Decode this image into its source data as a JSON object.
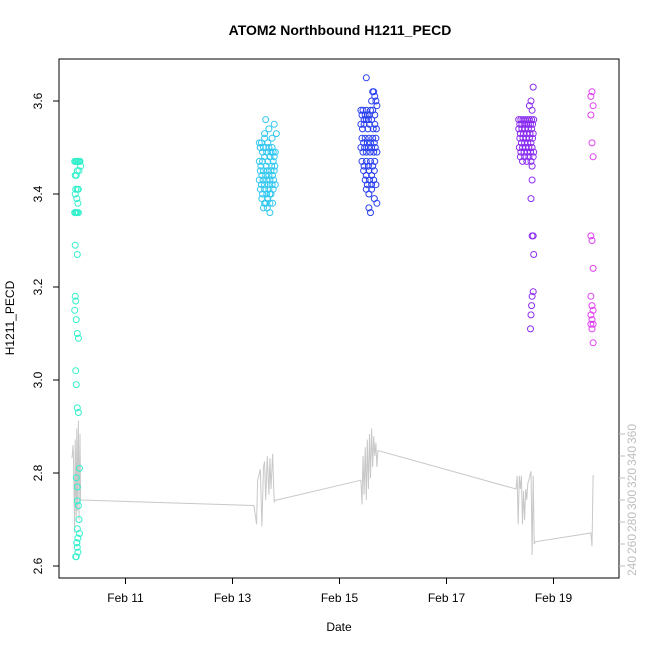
{
  "chart_data": {
    "type": "scatter",
    "title": "ATOM2 Northbound H1211_PECD",
    "xlabel": "Date",
    "ylabel": "H1211_PECD",
    "y2label": "",
    "x_ticks": [
      {
        "day": 11,
        "label": "Feb 11"
      },
      {
        "day": 13,
        "label": "Feb 13"
      },
      {
        "day": 15,
        "label": "Feb 15"
      },
      {
        "day": 17,
        "label": "Feb 17"
      },
      {
        "day": 19,
        "label": "Feb 19"
      }
    ],
    "y_ticks": [
      "2.6",
      "2.8",
      "3.0",
      "3.2",
      "3.4",
      "3.6"
    ],
    "y2_ticks": [
      "240",
      "260",
      "280",
      "300",
      "320",
      "340",
      "360"
    ],
    "ylim": [
      2.6,
      3.68
    ],
    "y2lim": [
      236,
      376
    ],
    "xlim_days": [
      9.9,
      19.95
    ],
    "colors": {
      "right_axis": "#bebebe",
      "line": "#c8c8c8",
      "groups": [
        "#33f0cc",
        "#33c8f0",
        "#2a40f0",
        "#8a2ef0",
        "#e040f0"
      ]
    },
    "series": [
      {
        "color": "#33f0cc",
        "x": [
          10.05,
          10.07,
          10.08,
          10.1,
          10.12,
          10.14,
          10.15,
          10.06,
          10.08,
          10.1,
          10.13,
          10.16,
          10.07,
          10.1,
          10.12,
          10.06,
          10.09,
          10.11,
          10.07,
          10.05,
          10.08,
          10.1,
          10.12,
          10.06,
          10.1,
          10.06,
          10.07,
          10.05,
          10.08,
          10.1,
          10.12,
          10.07,
          10.08,
          10.1,
          10.12,
          10.14,
          10.08,
          10.1,
          10.1,
          10.12,
          10.13,
          10.14,
          10.09,
          10.1,
          10.11,
          10.08,
          10.07,
          10.09,
          10.1,
          10.11
        ],
        "y": [
          3.47,
          3.47,
          3.47,
          3.47,
          3.47,
          3.47,
          3.47,
          3.44,
          3.44,
          3.45,
          3.45,
          3.46,
          3.41,
          3.41,
          3.41,
          3.4,
          3.39,
          3.38,
          3.36,
          3.36,
          3.36,
          3.36,
          3.36,
          3.29,
          3.27,
          3.18,
          3.17,
          3.15,
          3.13,
          3.1,
          3.09,
          3.02,
          2.99,
          2.94,
          2.93,
          2.81,
          2.79,
          2.77,
          2.74,
          2.73,
          2.7,
          2.67,
          2.65,
          2.64,
          2.63,
          2.62,
          2.62,
          2.65,
          2.68,
          2.66
        ]
      },
      {
        "color": "#33c8f0",
        "x": [
          13.5,
          13.52,
          13.54,
          13.56,
          13.58,
          13.6,
          13.62,
          13.64,
          13.66,
          13.68,
          13.7,
          13.72,
          13.74,
          13.76,
          13.78,
          13.8,
          13.5,
          13.53,
          13.56,
          13.6,
          13.63,
          13.66,
          13.7,
          13.73,
          13.76,
          13.79,
          13.52,
          13.55,
          13.58,
          13.62,
          13.65,
          13.68,
          13.72,
          13.75,
          13.78,
          13.5,
          13.54,
          13.57,
          13.6,
          13.64,
          13.67,
          13.7,
          13.74,
          13.77,
          13.8,
          13.52,
          13.56,
          13.6,
          13.64,
          13.68,
          13.72,
          13.76,
          13.55,
          13.6,
          13.65,
          13.7,
          13.75,
          13.58,
          13.62,
          13.66,
          13.7,
          13.62,
          13.68,
          13.74,
          13.78,
          13.82,
          13.6,
          13.62,
          13.65,
          13.7
        ],
        "y": [
          3.51,
          3.5,
          3.51,
          3.49,
          3.5,
          3.52,
          3.5,
          3.49,
          3.51,
          3.5,
          3.48,
          3.49,
          3.5,
          3.49,
          3.48,
          3.49,
          3.47,
          3.46,
          3.47,
          3.48,
          3.46,
          3.47,
          3.48,
          3.46,
          3.47,
          3.46,
          3.45,
          3.44,
          3.45,
          3.44,
          3.45,
          3.44,
          3.45,
          3.44,
          3.45,
          3.43,
          3.42,
          3.43,
          3.42,
          3.43,
          3.42,
          3.43,
          3.42,
          3.43,
          3.42,
          3.41,
          3.4,
          3.41,
          3.4,
          3.41,
          3.4,
          3.41,
          3.39,
          3.38,
          3.39,
          3.38,
          3.38,
          3.37,
          3.38,
          3.39,
          3.4,
          3.56,
          3.54,
          3.52,
          3.55,
          3.53,
          3.53,
          3.38,
          3.37,
          3.36
        ]
      },
      {
        "color": "#2a40f0",
        "x": [
          15.4,
          15.42,
          15.44,
          15.46,
          15.48,
          15.5,
          15.52,
          15.54,
          15.56,
          15.58,
          15.6,
          15.62,
          15.64,
          15.66,
          15.68,
          15.7,
          15.4,
          15.43,
          15.46,
          15.5,
          15.53,
          15.56,
          15.6,
          15.63,
          15.66,
          15.69,
          15.42,
          15.45,
          15.48,
          15.52,
          15.55,
          15.58,
          15.62,
          15.65,
          15.68,
          15.4,
          15.44,
          15.47,
          15.5,
          15.54,
          15.57,
          15.6,
          15.64,
          15.67,
          15.7,
          15.42,
          15.46,
          15.5,
          15.54,
          15.58,
          15.62,
          15.66,
          15.45,
          15.5,
          15.55,
          15.6,
          15.65,
          15.48,
          15.52,
          15.56,
          15.6,
          15.64,
          15.68,
          15.5,
          15.55,
          15.6,
          15.65,
          15.7,
          15.62,
          15.66,
          15.5,
          15.55,
          15.58
        ],
        "y": [
          3.58,
          3.57,
          3.58,
          3.56,
          3.57,
          3.58,
          3.57,
          3.56,
          3.57,
          3.58,
          3.6,
          3.62,
          3.62,
          3.61,
          3.6,
          3.59,
          3.55,
          3.54,
          3.55,
          3.56,
          3.54,
          3.55,
          3.56,
          3.54,
          3.55,
          3.54,
          3.52,
          3.51,
          3.52,
          3.51,
          3.52,
          3.51,
          3.52,
          3.51,
          3.52,
          3.5,
          3.49,
          3.5,
          3.49,
          3.5,
          3.49,
          3.5,
          3.49,
          3.5,
          3.49,
          3.47,
          3.46,
          3.47,
          3.46,
          3.47,
          3.46,
          3.47,
          3.45,
          3.44,
          3.45,
          3.44,
          3.45,
          3.43,
          3.42,
          3.43,
          3.42,
          3.43,
          3.42,
          3.41,
          3.4,
          3.41,
          3.39,
          3.38,
          3.58,
          3.57,
          3.65,
          3.37,
          3.36
        ]
      },
      {
        "color": "#8a2ef0",
        "x": [
          18.35,
          18.37,
          18.39,
          18.41,
          18.43,
          18.45,
          18.47,
          18.49,
          18.51,
          18.53,
          18.55,
          18.57,
          18.59,
          18.61,
          18.63,
          18.35,
          18.38,
          18.41,
          18.44,
          18.47,
          18.5,
          18.53,
          18.56,
          18.59,
          18.62,
          18.37,
          18.4,
          18.43,
          18.46,
          18.49,
          18.52,
          18.55,
          18.58,
          18.61,
          18.36,
          18.39,
          18.42,
          18.45,
          18.48,
          18.51,
          18.54,
          18.57,
          18.6,
          18.63,
          18.38,
          18.42,
          18.46,
          18.5,
          18.54,
          18.58,
          18.62,
          18.55,
          18.58,
          18.6,
          18.62,
          18.6,
          18.6,
          18.58,
          18.6,
          18.62,
          18.63,
          18.62,
          18.6,
          18.59,
          18.58,
          18.57
        ],
        "y": [
          3.56,
          3.55,
          3.56,
          3.55,
          3.56,
          3.55,
          3.56,
          3.55,
          3.56,
          3.55,
          3.56,
          3.55,
          3.56,
          3.55,
          3.56,
          3.54,
          3.53,
          3.54,
          3.53,
          3.54,
          3.53,
          3.54,
          3.53,
          3.54,
          3.53,
          3.52,
          3.51,
          3.52,
          3.51,
          3.52,
          3.51,
          3.52,
          3.51,
          3.52,
          3.5,
          3.49,
          3.5,
          3.49,
          3.5,
          3.49,
          3.5,
          3.49,
          3.5,
          3.49,
          3.48,
          3.47,
          3.48,
          3.47,
          3.48,
          3.47,
          3.48,
          3.59,
          3.6,
          3.58,
          3.63,
          3.46,
          3.43,
          3.39,
          3.31,
          3.31,
          3.27,
          3.19,
          3.18,
          3.16,
          3.14,
          3.11
        ]
      },
      {
        "color": "#e040f0",
        "x": [
          19.7,
          19.72,
          19.74,
          19.7,
          19.72,
          19.74,
          19.7,
          19.72,
          19.74,
          19.7,
          19.72,
          19.74,
          19.7,
          19.72,
          19.74,
          19.7,
          19.72,
          19.74
        ],
        "y": [
          3.61,
          3.62,
          3.59,
          3.57,
          3.51,
          3.48,
          3.31,
          3.3,
          3.24,
          3.18,
          3.16,
          3.15,
          3.14,
          3.13,
          3.12,
          3.12,
          3.11,
          3.08
        ]
      }
    ],
    "line_series": {
      "axis": "right",
      "x": [
        10.0,
        10.02,
        10.03,
        10.05,
        10.06,
        10.08,
        10.09,
        10.1,
        10.12,
        10.13,
        10.15,
        10.16,
        13.4,
        13.45,
        13.47,
        13.5,
        13.52,
        13.55,
        13.58,
        13.6,
        13.62,
        13.65,
        13.68,
        13.7,
        13.72,
        13.75,
        13.78,
        13.8,
        13.83,
        15.4,
        15.42,
        15.44,
        15.46,
        15.48,
        15.5,
        15.52,
        15.54,
        15.56,
        15.58,
        15.6,
        15.62,
        15.64,
        15.66,
        15.68,
        15.7,
        15.72,
        18.3,
        18.32,
        18.34,
        18.36,
        18.38,
        18.4,
        18.42,
        18.44,
        18.46,
        18.48,
        18.5,
        18.52,
        18.55,
        18.58,
        18.6,
        18.62,
        18.64,
        18.66,
        19.7,
        19.72,
        19.74,
        19.76
      ],
      "y": [
        338,
        350,
        332,
        270,
        355,
        285,
        365,
        290,
        372,
        282,
        360,
        300,
        295,
        278,
        318,
        324,
        328,
        276,
        330,
        335,
        300,
        340,
        305,
        338,
        310,
        342,
        298,
        300,
        300,
        318,
        296,
        340,
        305,
        348,
        300,
        355,
        310,
        360,
        320,
        365,
        330,
        358,
        340,
        352,
        330,
        345,
        310,
        322,
        278,
        322,
        310,
        322,
        278,
        308,
        282,
        310,
        300,
        315,
        320,
        326,
        250,
        322,
        260,
        262,
        270,
        258,
        322,
        322
      ]
    }
  }
}
